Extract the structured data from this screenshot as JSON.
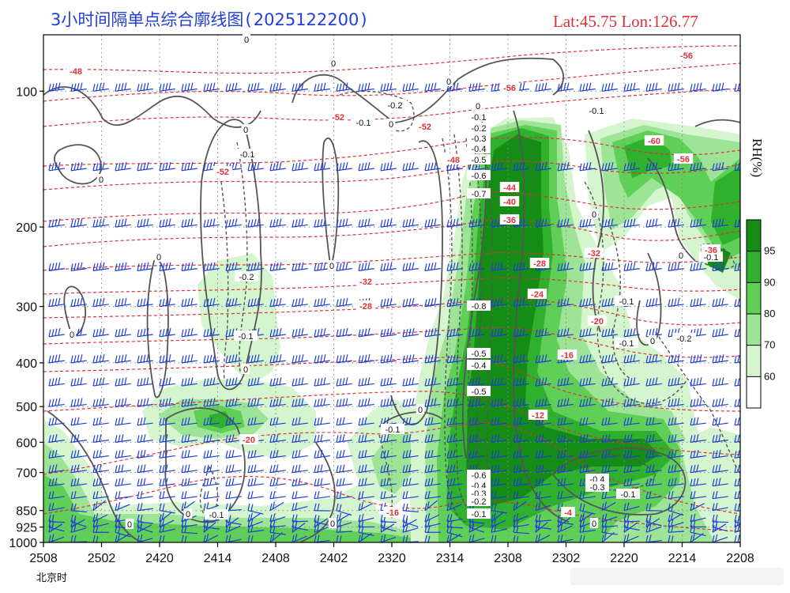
{
  "title": "3小时间隔单点综合廓线图 ( 2025122200 )",
  "location": "Lat:45.75  Lon:126.77",
  "chart_data": {
    "type": "heatmap",
    "xlabel": "北京时",
    "x_ticks": [
      "2508",
      "2502",
      "2420",
      "2414",
      "2408",
      "2402",
      "2320",
      "2314",
      "2308",
      "2302",
      "2220",
      "2214",
      "2208"
    ],
    "y_ticks": [
      100,
      200,
      300,
      400,
      500,
      600,
      700,
      850,
      925,
      1000
    ],
    "ylim": [
      1000,
      75
    ],
    "colorbar": {
      "label": "RH(%)",
      "ticks": [
        60,
        70,
        80,
        90,
        95
      ],
      "colors": [
        "#ffffff",
        "#d4f5cd",
        "#9ee497",
        "#5fcf57",
        "#2fb12d",
        "#158c15"
      ]
    },
    "temperature_labels": [
      "-56",
      "-52",
      "-48",
      "-44",
      "-40",
      "-36",
      "-32",
      "-28",
      "-24",
      "-20",
      "-16",
      "-12",
      "-4"
    ],
    "vertical_velocity_labels": [
      "0",
      "-0.1",
      "-0.2",
      "-0.3",
      "-0.4",
      "-0.5",
      "-0.6",
      "-0.7",
      "-0.8"
    ],
    "grid": true
  }
}
